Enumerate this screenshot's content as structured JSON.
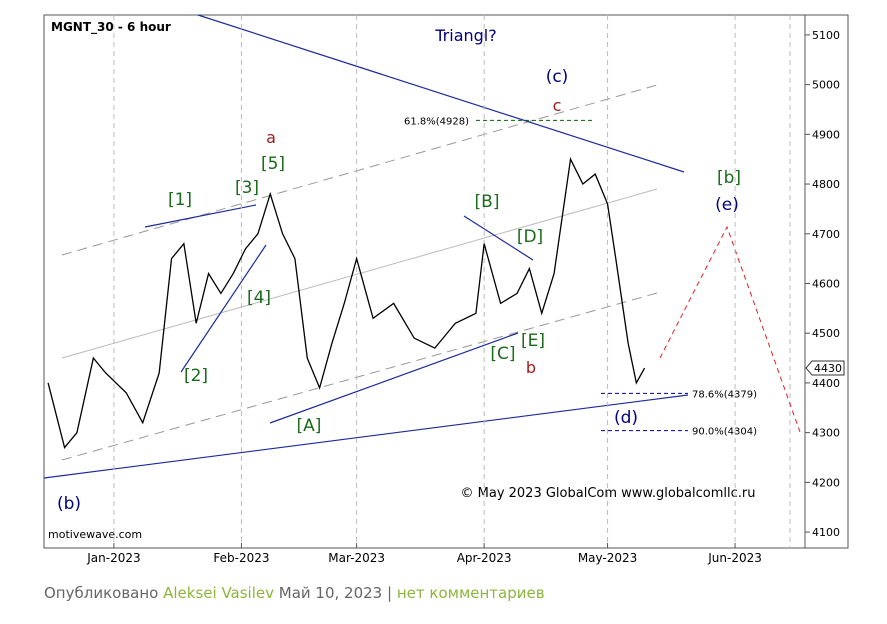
{
  "chart_data": {
    "type": "line",
    "title": "MGNT_30 - 6 hour",
    "subtitle": "Triangl?",
    "copyright": "© May 2023 GlobalCom www.globalcomllc.ru",
    "watermark": "motivewave.com",
    "series": [
      {
        "name": "MGNT",
        "color": "#000000",
        "x": [
          "2022-12-16",
          "2022-12-20",
          "2022-12-23",
          "2022-12-27",
          "2022-12-30",
          "2023-01-04",
          "2023-01-08",
          "2023-01-12",
          "2023-01-15",
          "2023-01-18",
          "2023-01-21",
          "2023-01-24",
          "2023-01-27",
          "2023-01-30",
          "2023-02-02",
          "2023-02-05",
          "2023-02-08",
          "2023-02-11",
          "2023-02-14",
          "2023-02-17",
          "2023-02-20",
          "2023-02-23",
          "2023-02-26",
          "2023-03-01",
          "2023-03-05",
          "2023-03-10",
          "2023-03-15",
          "2023-03-20",
          "2023-03-25",
          "2023-03-30",
          "2023-04-01",
          "2023-04-05",
          "2023-04-09",
          "2023-04-12",
          "2023-04-15",
          "2023-04-18",
          "2023-04-22",
          "2023-04-25",
          "2023-04-28",
          "2023-05-01",
          "2023-05-03",
          "2023-05-06",
          "2023-05-08",
          "2023-05-10"
        ],
        "values": [
          4400,
          4270,
          4300,
          4450,
          4420,
          4380,
          4320,
          4420,
          4650,
          4680,
          4520,
          4620,
          4580,
          4620,
          4670,
          4700,
          4780,
          4700,
          4650,
          4450,
          4390,
          4480,
          4560,
          4650,
          4530,
          4560,
          4490,
          4470,
          4520,
          4540,
          4680,
          4560,
          4580,
          4630,
          4540,
          4620,
          4850,
          4800,
          4820,
          4760,
          4650,
          4480,
          4400,
          4430
        ]
      }
    ],
    "last_price": 4430,
    "xlim": [
      "2022-12-15",
      "2023-06-18"
    ],
    "xticks": [
      {
        "value": "2023-01-01",
        "label": "Jan-2023"
      },
      {
        "value": "2023-02-01",
        "label": "Feb-2023"
      },
      {
        "value": "2023-03-01",
        "label": "Mar-2023"
      },
      {
        "value": "2023-04-01",
        "label": "Apr-2023"
      },
      {
        "value": "2023-05-01",
        "label": "May-2023"
      },
      {
        "value": "2023-06-01",
        "label": "Jun-2023"
      }
    ],
    "ylim": [
      4068,
      5140
    ],
    "yticks": [
      4100,
      4200,
      4300,
      4400,
      4500,
      4600,
      4700,
      4800,
      4900,
      5000,
      5100
    ],
    "fib_levels": [
      {
        "value": 4928,
        "label": "61.8%(4928)",
        "color": "#006400"
      },
      {
        "value": 4379,
        "label": "78.6%(4379)",
        "color": "#000080"
      },
      {
        "value": 4304,
        "label": "90.0%(4304)",
        "color": "#000080"
      }
    ],
    "annotations": [
      {
        "text": "[1]",
        "color": "#1a6b1a"
      },
      {
        "text": "[2]",
        "color": "#1a6b1a"
      },
      {
        "text": "[3]",
        "color": "#1a6b1a"
      },
      {
        "text": "[4]",
        "color": "#1a6b1a"
      },
      {
        "text": "[5]",
        "color": "#1a6b1a"
      },
      {
        "text": "a",
        "color": "#a01c1c"
      },
      {
        "text": "[A]",
        "color": "#1a6b1a"
      },
      {
        "text": "[B]",
        "color": "#1a6b1a"
      },
      {
        "text": "[C]",
        "color": "#1a6b1a"
      },
      {
        "text": "[D]",
        "color": "#1a6b1a"
      },
      {
        "text": "[E]",
        "color": "#1a6b1a"
      },
      {
        "text": "b",
        "color": "#a01c1c"
      },
      {
        "text": "(c)",
        "color": "#000080"
      },
      {
        "text": "c",
        "color": "#a01c1c"
      },
      {
        "text": "(d)",
        "color": "#000080"
      },
      {
        "text": "[b]",
        "color": "#1a6b1a"
      },
      {
        "text": "(e)",
        "color": "#000080"
      },
      {
        "text": "(b)",
        "color": "#000080"
      }
    ]
  },
  "footer": {
    "published": "Опубликовано",
    "author": "Aleksei Vasilev",
    "date": "Май 10, 2023",
    "separator": "|",
    "comments": "нет комментариев"
  }
}
